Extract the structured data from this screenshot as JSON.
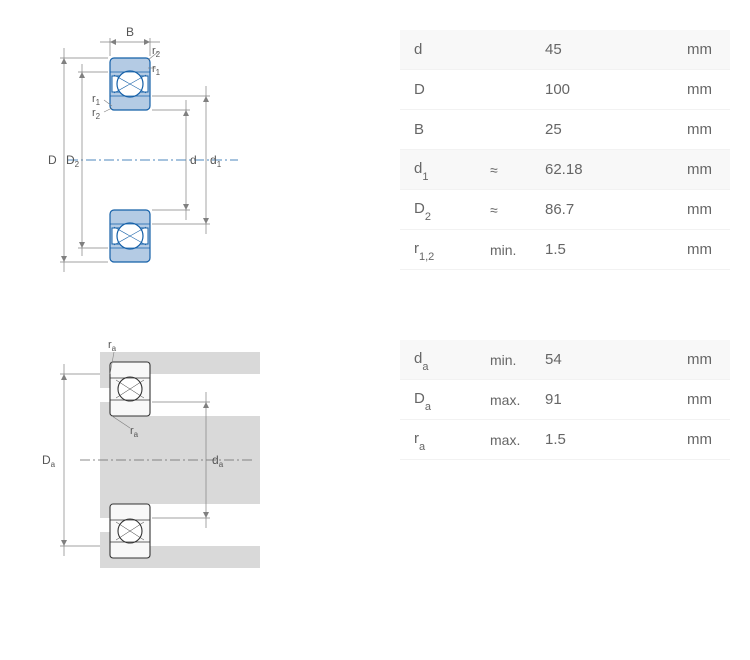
{
  "table1": {
    "rows": [
      {
        "symbol": "d",
        "sub": "",
        "qualifier": "",
        "value": "45",
        "unit": "mm",
        "header": true
      },
      {
        "symbol": "D",
        "sub": "",
        "qualifier": "",
        "value": "100",
        "unit": "mm",
        "header": false
      },
      {
        "symbol": "B",
        "sub": "",
        "qualifier": "",
        "value": "25",
        "unit": "mm",
        "header": false
      },
      {
        "symbol": "d",
        "sub": "1",
        "qualifier": "≈",
        "value": "62.18",
        "unit": "mm",
        "header": true
      },
      {
        "symbol": "D",
        "sub": "2",
        "qualifier": "≈",
        "value": "86.7",
        "unit": "mm",
        "header": false
      },
      {
        "symbol": "r",
        "sub": "1,2",
        "qualifier": "min.",
        "value": "1.5",
        "unit": "mm",
        "header": false
      }
    ]
  },
  "table2": {
    "rows": [
      {
        "symbol": "d",
        "sub": "a",
        "qualifier": "min.",
        "value": "54",
        "unit": "mm",
        "header": true
      },
      {
        "symbol": "D",
        "sub": "a",
        "qualifier": "max.",
        "value": "91",
        "unit": "mm",
        "header": false
      },
      {
        "symbol": "r",
        "sub": "a",
        "qualifier": "max.",
        "value": "1.5",
        "unit": "mm",
        "header": false
      }
    ]
  },
  "diagram1": {
    "labels": {
      "B": "B",
      "r2_top": "r₂",
      "r1_top": "r₁",
      "r1_side": "r₁",
      "r2_side": "r₂",
      "D": "D",
      "D2": "D₂",
      "d": "d",
      "d1": "d₁"
    },
    "colors": {
      "bearing_fill": "#b4cbe4",
      "bearing_stroke": "#1560a8",
      "ball_fill": "#ffffff",
      "centerline": "#1560a8",
      "dim_line": "#808080",
      "text": "#555555"
    }
  },
  "diagram2": {
    "labels": {
      "ra_top": "rₐ",
      "ra_side": "rₐ",
      "Da": "Dₐ",
      "da": "dₐ"
    },
    "colors": {
      "housing_fill": "#d9d9d9",
      "shaft_fill": "#d9d9d9",
      "bearing_fill": "#f5f5f5",
      "bearing_stroke": "#333333",
      "ball_fill": "#ffffff",
      "centerline": "#666666",
      "dim_line": "#808080",
      "text": "#555555"
    }
  }
}
